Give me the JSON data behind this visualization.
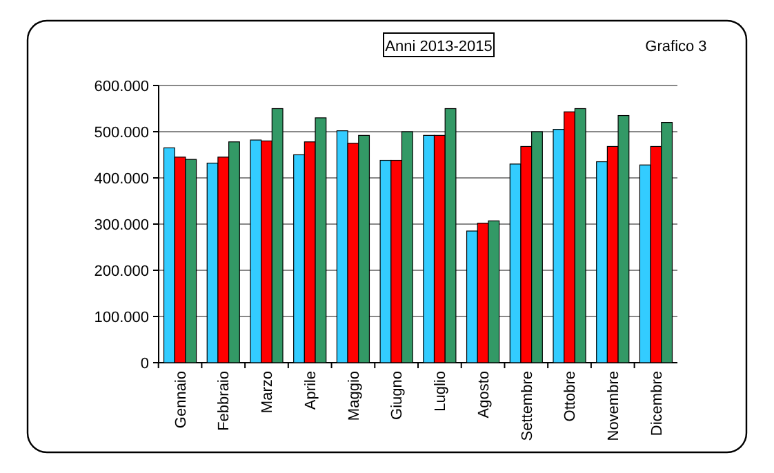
{
  "chart_data": {
    "type": "bar",
    "title": "Anni 2013-2015",
    "subtitle": "Grafico 3",
    "categories": [
      "Gennaio",
      "Febbraio",
      "Marzo",
      "Aprile",
      "Maggio",
      "Giugno",
      "Luglio",
      "Agosto",
      "Settembre",
      "Ottobre",
      "Novembre",
      "Dicembre"
    ],
    "series": [
      {
        "color": "#33ccff",
        "values": [
          465000,
          432000,
          482000,
          450000,
          502000,
          438000,
          492000,
          285000,
          430000,
          505000,
          435000,
          428000
        ]
      },
      {
        "color": "#ff0000",
        "values": [
          445000,
          445000,
          480000,
          478000,
          475000,
          438000,
          492000,
          302000,
          468000,
          543000,
          468000,
          468000
        ]
      },
      {
        "color": "#339966",
        "values": [
          440000,
          478000,
          550000,
          530000,
          492000,
          500000,
          550000,
          307000,
          500000,
          550000,
          535000,
          520000
        ]
      }
    ],
    "ylim": [
      0,
      600000
    ],
    "yticks": [
      {
        "value": 0,
        "label": "0"
      },
      {
        "value": 100000,
        "label": "100.000"
      },
      {
        "value": 200000,
        "label": "200.000"
      },
      {
        "value": 300000,
        "label": "300.000"
      },
      {
        "value": 400000,
        "label": "400.000"
      },
      {
        "value": 500000,
        "label": "500.000"
      },
      {
        "value": 600000,
        "label": "600.000"
      }
    ],
    "grid": "y"
  }
}
